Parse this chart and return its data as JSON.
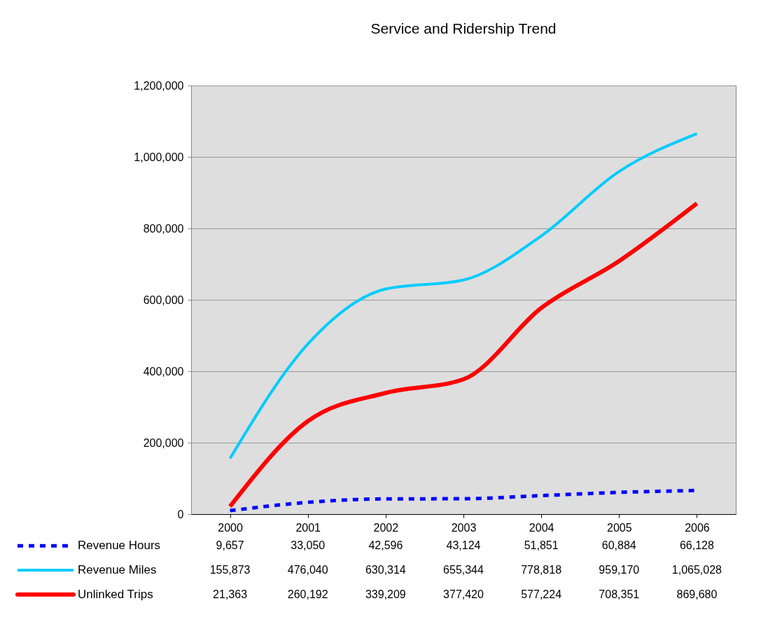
{
  "chart_data": {
    "type": "line",
    "title": "Service and Ridership Trend",
    "categories": [
      "2000",
      "2001",
      "2002",
      "2003",
      "2004",
      "2005",
      "2006"
    ],
    "series": [
      {
        "name": "Revenue Hours",
        "color": "#0000ff",
        "line_style": "dashed",
        "values": [
          9657,
          33050,
          42596,
          43124,
          51851,
          60884,
          66128
        ],
        "value_labels": [
          "9,657",
          "33,050",
          "42,596",
          "43,124",
          "51,851",
          "60,884",
          "66,128"
        ]
      },
      {
        "name": "Revenue Miles",
        "color": "#00ccff",
        "line_style": "solid",
        "values": [
          155873,
          476040,
          630314,
          655344,
          778818,
          959170,
          1065028
        ],
        "value_labels": [
          "155,873",
          "476,040",
          "630,314",
          "655,344",
          "778,818",
          "959,170",
          "1,065,028"
        ]
      },
      {
        "name": "Unlinked Trips",
        "color": "#ff0000",
        "line_style": "solid",
        "values": [
          21363,
          260192,
          339209,
          377420,
          577224,
          708351,
          869680
        ],
        "value_labels": [
          "21,363",
          "260,192",
          "339,209",
          "377,420",
          "577,224",
          "708,351",
          "869,680"
        ]
      }
    ],
    "ylim": [
      0,
      1200000
    ],
    "yticks": [
      0,
      {
        "value": 200000,
        "label": "200,000"
      },
      {
        "value": 400000,
        "label": "400,000"
      },
      {
        "value": 600000,
        "label": "600,000"
      },
      {
        "value": 800000,
        "label": "800,000"
      },
      {
        "value": 1000000,
        "label": "1,000,000"
      },
      {
        "value": 1200000,
        "label": "1,200,000"
      }
    ],
    "grid": "y",
    "legend": "bottom",
    "marker": "none"
  }
}
